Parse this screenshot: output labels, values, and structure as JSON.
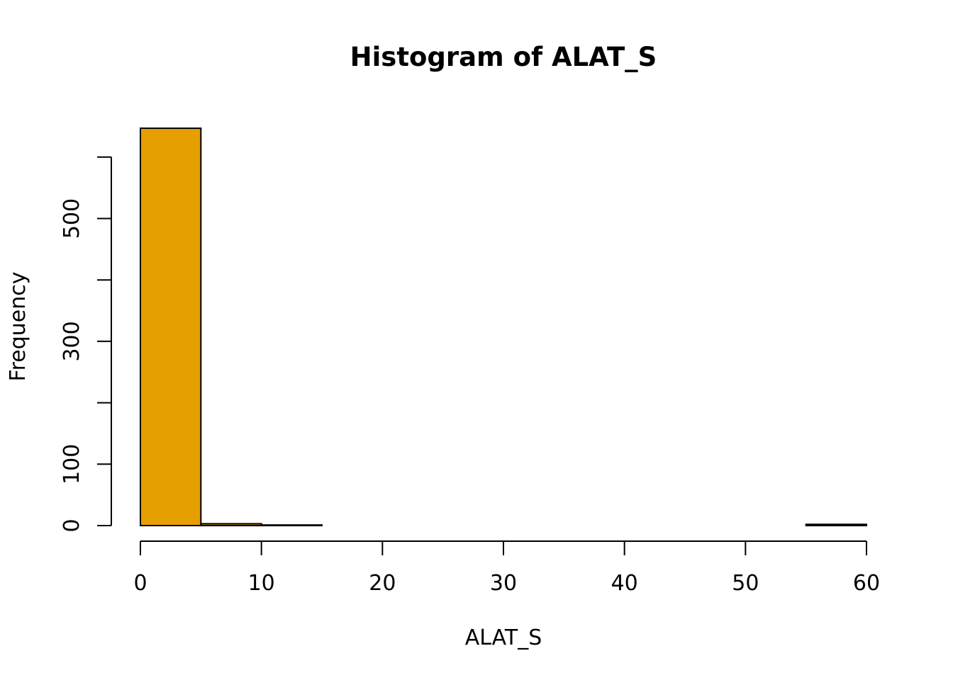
{
  "chart_data": {
    "type": "bar",
    "title": "Histogram of ALAT_S",
    "xlabel": "ALAT_S",
    "ylabel": "Frequency",
    "bin_edges": [
      0,
      5,
      10,
      15,
      20,
      25,
      30,
      35,
      40,
      45,
      50,
      55,
      60
    ],
    "categories": [
      "0-5",
      "5-10",
      "10-15",
      "15-20",
      "20-25",
      "25-30",
      "30-35",
      "35-40",
      "40-45",
      "45-50",
      "50-55",
      "55-60"
    ],
    "values": [
      647,
      3,
      1,
      0,
      0,
      0,
      0,
      0,
      0,
      0,
      0,
      2
    ],
    "xlim": [
      0,
      60
    ],
    "ylim": [
      0,
      600
    ],
    "xticks": [
      0,
      10,
      20,
      30,
      40,
      50,
      60
    ],
    "yticks": [
      0,
      100,
      200,
      300,
      400,
      500,
      600
    ],
    "ytick_labels": [
      "0",
      "100",
      "",
      "300",
      "",
      "500",
      ""
    ],
    "bar_color": "#E69F00",
    "grid": false,
    "legend": "none"
  }
}
